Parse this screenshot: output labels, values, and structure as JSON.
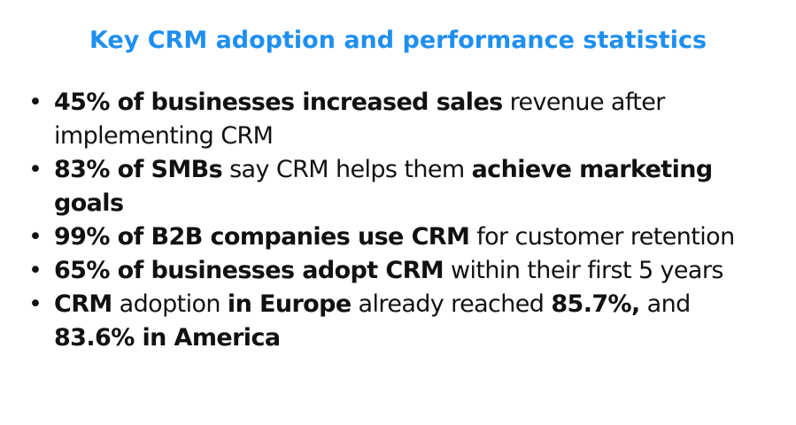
{
  "title": "Key CRM adoption and performance statistics",
  "accent_color": "#1f8ff0",
  "bullet_glyph": "•",
  "items": [
    {
      "segments": [
        {
          "text": "45% of businesses increased sales",
          "bold": true
        },
        {
          "text": " revenue after implementing CRM",
          "bold": false
        }
      ]
    },
    {
      "segments": [
        {
          "text": "83% of SMBs",
          "bold": true
        },
        {
          "text": " say CRM helps them ",
          "bold": false
        },
        {
          "text": "achieve marketing goals",
          "bold": true
        }
      ]
    },
    {
      "segments": [
        {
          "text": "99% of B2B companies use CRM",
          "bold": true
        },
        {
          "text": " for customer retention",
          "bold": false
        }
      ]
    },
    {
      "segments": [
        {
          "text": "65% of businesses adopt CRM",
          "bold": true
        },
        {
          "text": " within their first 5 years",
          "bold": false
        }
      ]
    },
    {
      "segments": [
        {
          "text": "CRM",
          "bold": true
        },
        {
          "text": " adoption ",
          "bold": false
        },
        {
          "text": "in Europe",
          "bold": true
        },
        {
          "text": " already reached ",
          "bold": false
        },
        {
          "text": "85.7%,",
          "bold": true
        },
        {
          "text": " and ",
          "bold": false
        },
        {
          "text": "83.6% in America",
          "bold": true
        }
      ]
    }
  ]
}
